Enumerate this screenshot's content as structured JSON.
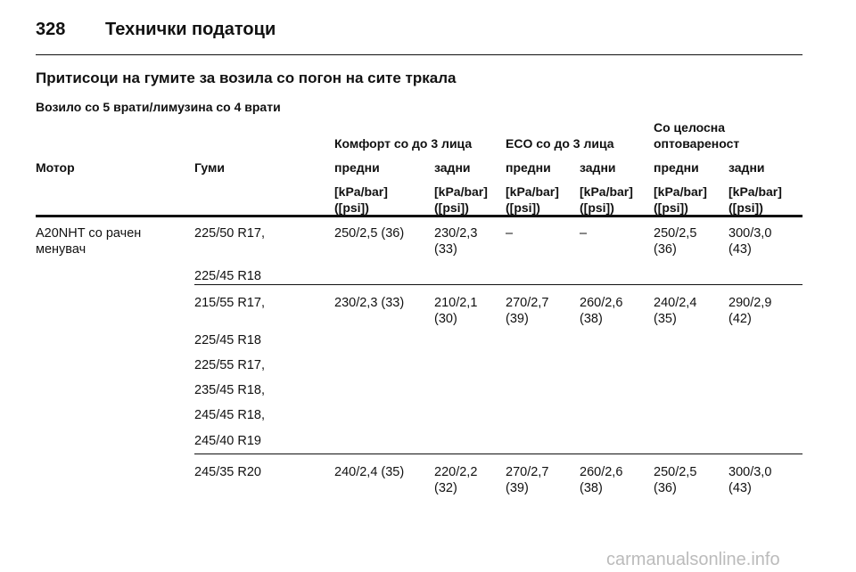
{
  "header": {
    "page_number": "328",
    "title": "Технички податоци"
  },
  "section_title": "Притисоци на гумите за возила со погон на сите тркала",
  "subtitle": "Возило со 5 врати/лимузина со 4 врати",
  "table": {
    "group_headers": [
      "Комфорт со до 3 лица",
      "ECO со до 3 лица",
      "Со целосна оптоварeност"
    ],
    "columns": [
      "Мотор",
      "Гуми",
      "предни",
      "задни",
      "предни",
      "задни",
      "предни",
      "задни"
    ],
    "units": [
      "[kPa/bar] ([psi])",
      "[kPa/bar] ([psi])",
      "[kPa/bar] ([psi])",
      "[kPa/bar] ([psi])",
      "[kPa/bar] ([psi])",
      "[kPa/bar] ([psi])"
    ],
    "rows": [
      {
        "engine": "A20NHT со рачен менувач",
        "tires": [
          "225/50 R17,",
          "225/45 R18"
        ],
        "values": [
          "250/2,5 (36)",
          "230/2,3 (33)",
          "–",
          "–",
          "250/2,5 (36)",
          "300/3,0 (43)"
        ]
      },
      {
        "tires": [
          "215/55 R17,",
          "225/45 R18",
          "225/55 R17,",
          "235/45 R18,",
          "245/45 R18,",
          "245/40 R19"
        ],
        "values": [
          "230/2,3 (33)",
          "210/2,1 (30)",
          "270/2,7 (39)",
          "260/2,6 (38)",
          "240/2,4 (35)",
          "290/2,9 (42)"
        ]
      },
      {
        "tires": [
          "245/35 R20"
        ],
        "values": [
          "240/2,4 (35)",
          "220/2,2 (32)",
          "270/2,7 (39)",
          "260/2,6 (38)",
          "250/2,5 (36)",
          "300/3,0 (43)"
        ]
      }
    ]
  },
  "watermark": "carmanualsonline.info"
}
